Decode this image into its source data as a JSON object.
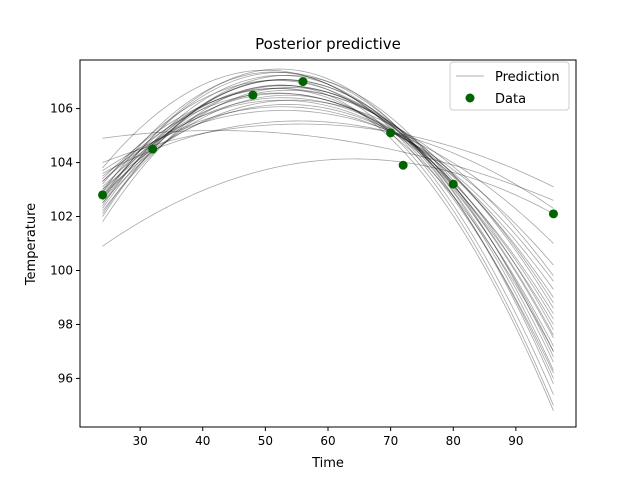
{
  "chart_data": {
    "type": "line",
    "title": "Posterior predictive",
    "xlabel": "Time",
    "ylabel": "Temperature",
    "xlim": [
      20.4,
      99.6
    ],
    "ylim": [
      94.2,
      107.8
    ],
    "xticks": [
      30,
      40,
      50,
      60,
      70,
      80,
      90
    ],
    "yticks": [
      96,
      98,
      100,
      102,
      104,
      106
    ],
    "grid": false,
    "legend_position": "top-right",
    "legend": [
      "Prediction",
      "Data"
    ],
    "x_range": [
      24,
      96
    ],
    "prediction_color": "#000000",
    "data_color": "#006400",
    "series": [
      {
        "name": "Prediction",
        "kind": "quadratic_curves",
        "curves": [
          [
            102.9,
            106.3,
            98.0
          ],
          [
            102.6,
            106.6,
            97.5
          ],
          [
            103.0,
            106.4,
            97.0
          ],
          [
            102.3,
            106.8,
            96.6
          ],
          [
            102.7,
            106.5,
            98.6
          ],
          [
            103.1,
            106.2,
            99.0
          ],
          [
            102.4,
            106.9,
            96.0
          ],
          [
            102.0,
            106.7,
            95.0
          ],
          [
            103.3,
            106.1,
            99.3
          ],
          [
            102.7,
            107.0,
            96.3
          ],
          [
            102.2,
            106.6,
            97.8
          ],
          [
            103.5,
            105.9,
            100.2
          ],
          [
            102.9,
            106.9,
            95.4
          ],
          [
            102.5,
            106.3,
            98.2
          ],
          [
            103.2,
            106.7,
            97.2
          ],
          [
            101.8,
            106.5,
            94.8
          ],
          [
            103.0,
            106.0,
            99.6
          ],
          [
            102.6,
            107.1,
            95.8
          ],
          [
            103.7,
            105.8,
            101.0
          ],
          [
            102.8,
            106.6,
            97.6
          ],
          [
            102.1,
            107.0,
            96.8
          ],
          [
            103.3,
            106.3,
            98.4
          ],
          [
            102.5,
            106.8,
            97.0
          ],
          [
            103.6,
            105.5,
            102.3
          ],
          [
            104.0,
            105.4,
            103.1
          ],
          [
            104.9,
            104.9,
            102.6
          ],
          [
            100.9,
            104.1,
            102.1
          ],
          [
            103.8,
            106.9,
            96.2
          ],
          [
            103.4,
            106.5,
            98.8
          ],
          [
            102.8,
            106.2,
            99.8
          ]
        ]
      },
      {
        "name": "Data",
        "kind": "scatter",
        "points": [
          [
            24,
            102.8
          ],
          [
            32,
            104.5
          ],
          [
            48,
            106.5
          ],
          [
            56,
            107.0
          ],
          [
            70,
            105.1
          ],
          [
            72,
            103.9
          ],
          [
            80,
            103.2
          ],
          [
            96,
            102.1
          ]
        ]
      }
    ]
  }
}
